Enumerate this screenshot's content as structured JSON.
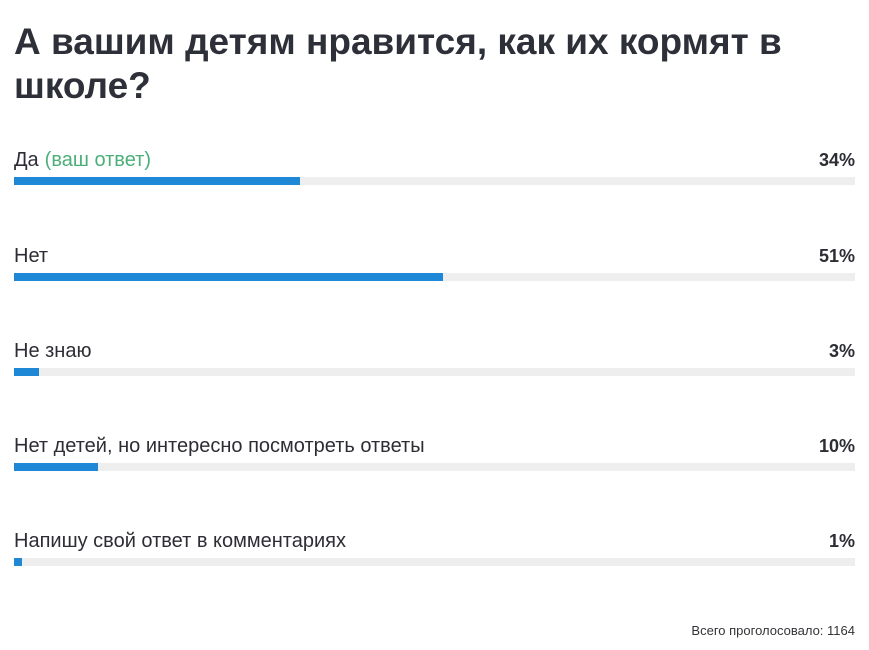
{
  "poll": {
    "question": "А вашим детям нравится, как их кормят в школе?",
    "your_answer_label": "(ваш ответ)",
    "options": [
      {
        "label": "Да",
        "percent_label": "34%",
        "percent": 34,
        "is_your_answer": true
      },
      {
        "label": "Нет",
        "percent_label": "51%",
        "percent": 51,
        "is_your_answer": false
      },
      {
        "label": "Не знаю",
        "percent_label": "3%",
        "percent": 3,
        "is_your_answer": false
      },
      {
        "label": "Нет детей, но интересно посмотреть ответы",
        "percent_label": "10%",
        "percent": 10,
        "is_your_answer": false
      },
      {
        "label": "Напишу свой ответ в комментариях",
        "percent_label": "1%",
        "percent": 1,
        "is_your_answer": false
      }
    ],
    "total_votes": "Всего проголосовало: 1164"
  },
  "colors": {
    "bar_fill": "#1e88d6",
    "bar_track": "#eeeeee",
    "your_answer": "#4caf7a",
    "text": "#2d2d35"
  }
}
